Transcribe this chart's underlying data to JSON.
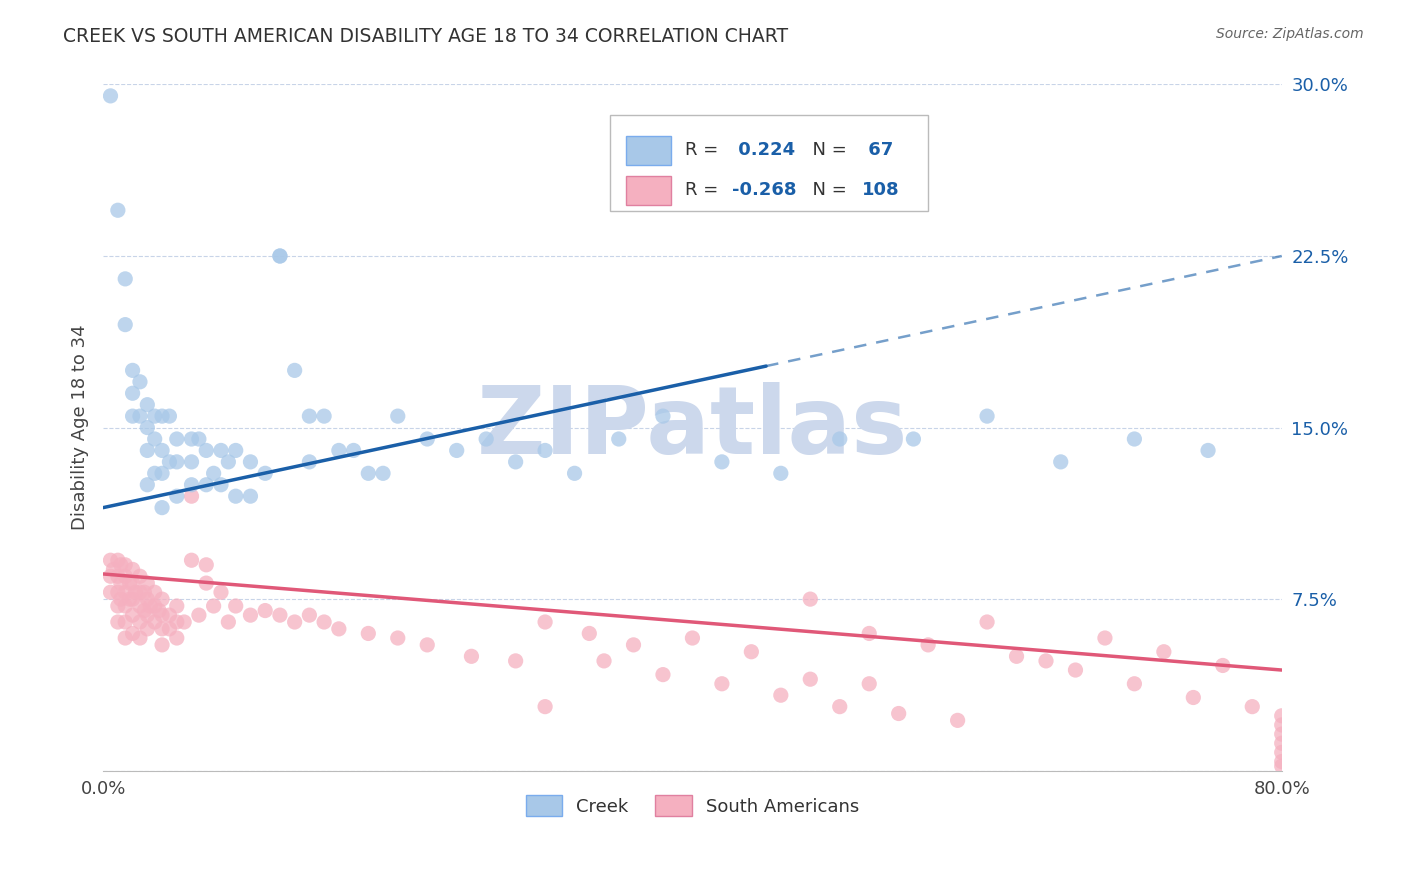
{
  "title": "CREEK VS SOUTH AMERICAN DISABILITY AGE 18 TO 34 CORRELATION CHART",
  "source": "Source: ZipAtlas.com",
  "ylabel": "Disability Age 18 to 34",
  "xlim": [
    0.0,
    0.8
  ],
  "ylim": [
    0.0,
    0.3
  ],
  "xtick_positions": [
    0.0,
    0.2,
    0.4,
    0.6,
    0.8
  ],
  "xticklabels": [
    "0.0%",
    "",
    "",
    "",
    "80.0%"
  ],
  "ytick_positions": [
    0.0,
    0.075,
    0.15,
    0.225,
    0.3
  ],
  "ytick_labels_right": [
    "",
    "7.5%",
    "15.0%",
    "22.5%",
    "30.0%"
  ],
  "creek_R": 0.224,
  "creek_N": 67,
  "sa_R": -0.268,
  "sa_N": 108,
  "creek_color": "#a8c8e8",
  "sa_color": "#f5b0c0",
  "creek_line_color": "#1a5fa8",
  "sa_line_color": "#e05878",
  "creek_line_solid_end": 0.45,
  "creek_line_x0": 0.0,
  "creek_line_y0": 0.115,
  "creek_line_x1": 0.8,
  "creek_line_y1": 0.225,
  "sa_line_x0": 0.0,
  "sa_line_y0": 0.086,
  "sa_line_x1": 0.8,
  "sa_line_y1": 0.044,
  "watermark_text": "ZIPatlas",
  "watermark_color": "#ccd8ec",
  "background_color": "#ffffff",
  "grid_color": "#c8d4e8",
  "legend_text_color": "#1a5fa8",
  "legend_R_eq_color": "#333333",
  "creek_scatter_x": [
    0.005,
    0.01,
    0.015,
    0.015,
    0.02,
    0.02,
    0.02,
    0.025,
    0.025,
    0.03,
    0.03,
    0.03,
    0.03,
    0.035,
    0.035,
    0.035,
    0.04,
    0.04,
    0.04,
    0.04,
    0.045,
    0.045,
    0.05,
    0.05,
    0.05,
    0.06,
    0.06,
    0.06,
    0.065,
    0.07,
    0.07,
    0.075,
    0.08,
    0.08,
    0.085,
    0.09,
    0.09,
    0.1,
    0.1,
    0.11,
    0.12,
    0.12,
    0.13,
    0.14,
    0.14,
    0.15,
    0.16,
    0.17,
    0.18,
    0.19,
    0.2,
    0.22,
    0.24,
    0.26,
    0.28,
    0.3,
    0.32,
    0.35,
    0.38,
    0.42,
    0.46,
    0.5,
    0.55,
    0.6,
    0.65,
    0.7,
    0.75
  ],
  "creek_scatter_y": [
    0.295,
    0.245,
    0.215,
    0.195,
    0.175,
    0.165,
    0.155,
    0.17,
    0.155,
    0.16,
    0.15,
    0.14,
    0.125,
    0.155,
    0.145,
    0.13,
    0.155,
    0.14,
    0.13,
    0.115,
    0.155,
    0.135,
    0.145,
    0.135,
    0.12,
    0.145,
    0.135,
    0.125,
    0.145,
    0.14,
    0.125,
    0.13,
    0.14,
    0.125,
    0.135,
    0.14,
    0.12,
    0.135,
    0.12,
    0.13,
    0.225,
    0.225,
    0.175,
    0.155,
    0.135,
    0.155,
    0.14,
    0.14,
    0.13,
    0.13,
    0.155,
    0.145,
    0.14,
    0.145,
    0.135,
    0.14,
    0.13,
    0.145,
    0.155,
    0.135,
    0.13,
    0.145,
    0.145,
    0.155,
    0.135,
    0.145,
    0.14
  ],
  "sa_scatter_x": [
    0.005,
    0.005,
    0.005,
    0.007,
    0.01,
    0.01,
    0.01,
    0.01,
    0.01,
    0.012,
    0.012,
    0.012,
    0.015,
    0.015,
    0.015,
    0.015,
    0.015,
    0.015,
    0.018,
    0.018,
    0.02,
    0.02,
    0.02,
    0.02,
    0.02,
    0.022,
    0.025,
    0.025,
    0.025,
    0.025,
    0.025,
    0.028,
    0.028,
    0.03,
    0.03,
    0.03,
    0.03,
    0.032,
    0.035,
    0.035,
    0.035,
    0.038,
    0.04,
    0.04,
    0.04,
    0.04,
    0.045,
    0.045,
    0.05,
    0.05,
    0.05,
    0.055,
    0.06,
    0.06,
    0.065,
    0.07,
    0.07,
    0.075,
    0.08,
    0.085,
    0.09,
    0.1,
    0.11,
    0.12,
    0.13,
    0.14,
    0.15,
    0.16,
    0.18,
    0.2,
    0.22,
    0.25,
    0.28,
    0.3,
    0.33,
    0.36,
    0.4,
    0.44,
    0.48,
    0.52,
    0.56,
    0.6,
    0.64,
    0.68,
    0.72,
    0.76,
    0.48,
    0.52,
    0.3,
    0.34,
    0.38,
    0.42,
    0.46,
    0.5,
    0.54,
    0.58,
    0.62,
    0.66,
    0.7,
    0.74,
    0.78,
    0.8,
    0.8,
    0.8,
    0.8,
    0.8,
    0.8,
    0.8
  ],
  "sa_scatter_y": [
    0.092,
    0.085,
    0.078,
    0.088,
    0.092,
    0.085,
    0.078,
    0.072,
    0.065,
    0.09,
    0.082,
    0.075,
    0.09,
    0.085,
    0.078,
    0.072,
    0.065,
    0.058,
    0.082,
    0.075,
    0.088,
    0.082,
    0.075,
    0.068,
    0.06,
    0.078,
    0.085,
    0.078,
    0.072,
    0.065,
    0.058,
    0.078,
    0.07,
    0.082,
    0.075,
    0.068,
    0.062,
    0.072,
    0.078,
    0.072,
    0.065,
    0.07,
    0.075,
    0.068,
    0.062,
    0.055,
    0.068,
    0.062,
    0.072,
    0.065,
    0.058,
    0.065,
    0.12,
    0.092,
    0.068,
    0.09,
    0.082,
    0.072,
    0.078,
    0.065,
    0.072,
    0.068,
    0.07,
    0.068,
    0.065,
    0.068,
    0.065,
    0.062,
    0.06,
    0.058,
    0.055,
    0.05,
    0.048,
    0.065,
    0.06,
    0.055,
    0.058,
    0.052,
    0.075,
    0.06,
    0.055,
    0.065,
    0.048,
    0.058,
    0.052,
    0.046,
    0.04,
    0.038,
    0.028,
    0.048,
    0.042,
    0.038,
    0.033,
    0.028,
    0.025,
    0.022,
    0.05,
    0.044,
    0.038,
    0.032,
    0.028,
    0.024,
    0.02,
    0.016,
    0.012,
    0.008,
    0.004,
    0.002
  ]
}
